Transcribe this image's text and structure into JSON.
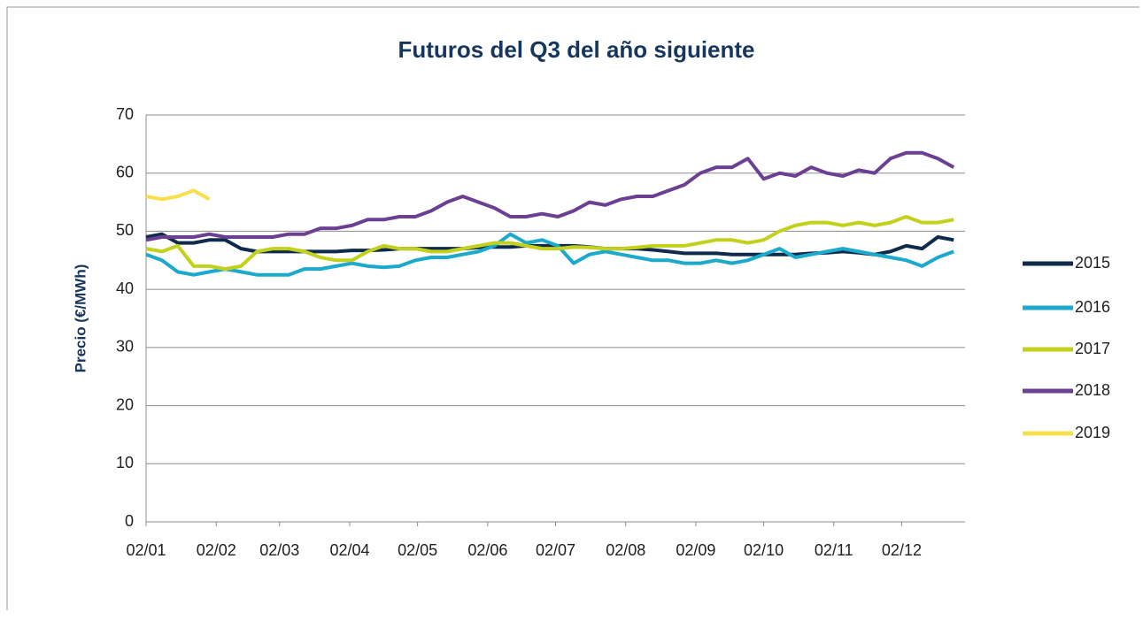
{
  "chart_data": {
    "type": "line",
    "title": "Futuros del Q3 del año siguiente",
    "y_label": "Precio (€/MWh)",
    "x": [
      2,
      9,
      16,
      23,
      30,
      37,
      44,
      51,
      58,
      65,
      72,
      79,
      86,
      93,
      100,
      107,
      114,
      121,
      128,
      135,
      142,
      149,
      156,
      163,
      170,
      177,
      184,
      191,
      198,
      205,
      212,
      219,
      226,
      233,
      240,
      247,
      254,
      261,
      268,
      275,
      282,
      289,
      296,
      303,
      310,
      317,
      324,
      331,
      338,
      345,
      352,
      359
    ],
    "xlim": [
      2,
      364
    ],
    "xticks": [
      {
        "value": 2,
        "label": "02/01"
      },
      {
        "value": 33,
        "label": "02/02"
      },
      {
        "value": 61,
        "label": "02/03"
      },
      {
        "value": 92,
        "label": "02/04"
      },
      {
        "value": 122,
        "label": "02/05"
      },
      {
        "value": 153,
        "label": "02/06"
      },
      {
        "value": 183,
        "label": "02/07"
      },
      {
        "value": 214,
        "label": "02/08"
      },
      {
        "value": 245,
        "label": "02/09"
      },
      {
        "value": 275,
        "label": "02/10"
      },
      {
        "value": 306,
        "label": "02/11"
      },
      {
        "value": 336,
        "label": "02/12"
      }
    ],
    "ylim": [
      0,
      70
    ],
    "yticks": [
      0,
      10,
      20,
      30,
      40,
      50,
      60,
      70
    ],
    "grid": true,
    "legend": "right",
    "series": [
      {
        "name": "2015",
        "color": "#0f2b4c",
        "values": [
          49,
          49.5,
          48,
          48,
          48.5,
          48.5,
          47,
          46.5,
          46.5,
          46.5,
          46.5,
          46.5,
          46.5,
          46.7,
          46.7,
          46.8,
          47,
          47,
          47,
          47,
          47,
          47.2,
          47.3,
          47.3,
          47.5,
          47.5,
          47.5,
          47.5,
          47.3,
          47,
          47,
          47,
          46.8,
          46.5,
          46.2,
          46.2,
          46.2,
          46,
          46,
          46,
          46,
          46,
          46.2,
          46.3,
          46.5,
          46.3,
          46,
          46.5,
          47.5,
          47,
          49,
          48.5
        ]
      },
      {
        "name": "2016",
        "color": "#1ba9cc",
        "values": [
          46,
          45,
          43,
          42.5,
          43,
          43.5,
          43,
          42.5,
          42.5,
          42.5,
          43.5,
          43.5,
          44,
          44.5,
          44,
          43.8,
          44,
          45,
          45.5,
          45.5,
          46,
          46.5,
          47.5,
          49.5,
          48,
          48.5,
          47.5,
          44.5,
          46,
          46.5,
          46,
          45.5,
          45,
          45,
          44.5,
          44.5,
          45,
          44.5,
          45,
          46,
          47,
          45.5,
          46,
          46.5,
          47,
          46.5,
          46,
          45.5,
          45,
          44,
          45.5,
          46.5
        ]
      },
      {
        "name": "2017",
        "color": "#c2d11c",
        "values": [
          47,
          46.5,
          47.5,
          44,
          44,
          43.5,
          44,
          46.5,
          47,
          47,
          46.5,
          45.5,
          45,
          45,
          46.5,
          47.5,
          47,
          47,
          46.5,
          46.5,
          47,
          47.5,
          48,
          48,
          47.5,
          47,
          47,
          47.3,
          47.2,
          47,
          47,
          47.2,
          47.5,
          47.5,
          47.5,
          48,
          48.5,
          48.5,
          48,
          48.5,
          50,
          51,
          51.5,
          51.5,
          51,
          51.5,
          51,
          51.5,
          52.5,
          51.5,
          51.5,
          52
        ]
      },
      {
        "name": "2018",
        "color": "#6b3f92",
        "values": [
          48.5,
          49,
          49,
          49,
          49.5,
          49,
          49,
          49,
          49,
          49.5,
          49.5,
          50.5,
          50.5,
          51,
          52,
          52,
          52.5,
          52.5,
          53.5,
          55,
          56,
          55,
          54,
          52.5,
          52.5,
          53,
          52.5,
          53.5,
          55,
          54.5,
          55.5,
          56,
          56,
          57,
          58,
          60,
          61,
          61,
          62.5,
          59,
          60,
          59.5,
          61,
          60,
          59.5,
          60.5,
          60,
          62.5,
          63.5,
          63.5,
          62.5,
          61
        ]
      },
      {
        "name": "2019",
        "color": "#f8df4c",
        "values": [
          56,
          55.5,
          56,
          57,
          55.5,
          null,
          null,
          null,
          null,
          null,
          null,
          null,
          null,
          null,
          null,
          null,
          null,
          null,
          null,
          null,
          null,
          null,
          null,
          null,
          null,
          null,
          null,
          null,
          null,
          null,
          null,
          null,
          null,
          null,
          null,
          null,
          null,
          null,
          null,
          null,
          null,
          null,
          null,
          null,
          null,
          null,
          null,
          null,
          null,
          null,
          null,
          null
        ]
      }
    ]
  }
}
